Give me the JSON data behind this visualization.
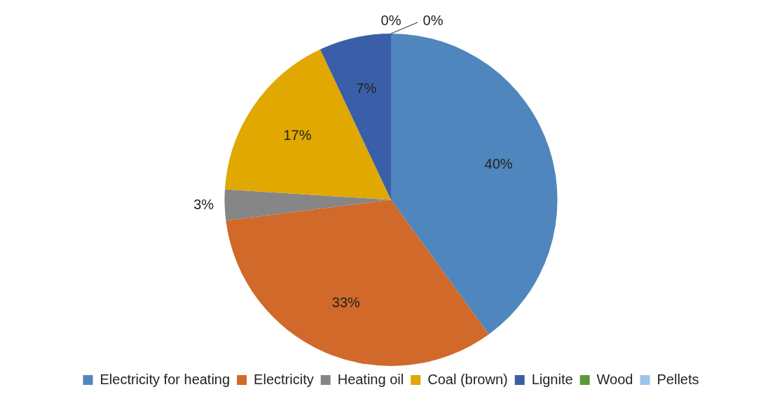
{
  "chart_data": {
    "type": "pie",
    "categories": [
      "Electricity for heating",
      "Electricity",
      "Heating oil",
      "Coal (brown)",
      "Lignite",
      "Wood",
      "Pellets"
    ],
    "values": [
      40,
      33,
      3,
      17,
      7,
      0,
      0
    ],
    "colors": [
      "#4f86bd",
      "#d0692a",
      "#868686",
      "#e0a800",
      "#3a5fa8",
      "#5a9a3a",
      "#9dc3e6"
    ],
    "value_labels": [
      "40%",
      "33%",
      "3%",
      "17%",
      "7%",
      "0%",
      "0%"
    ],
    "legend": "bottom"
  }
}
